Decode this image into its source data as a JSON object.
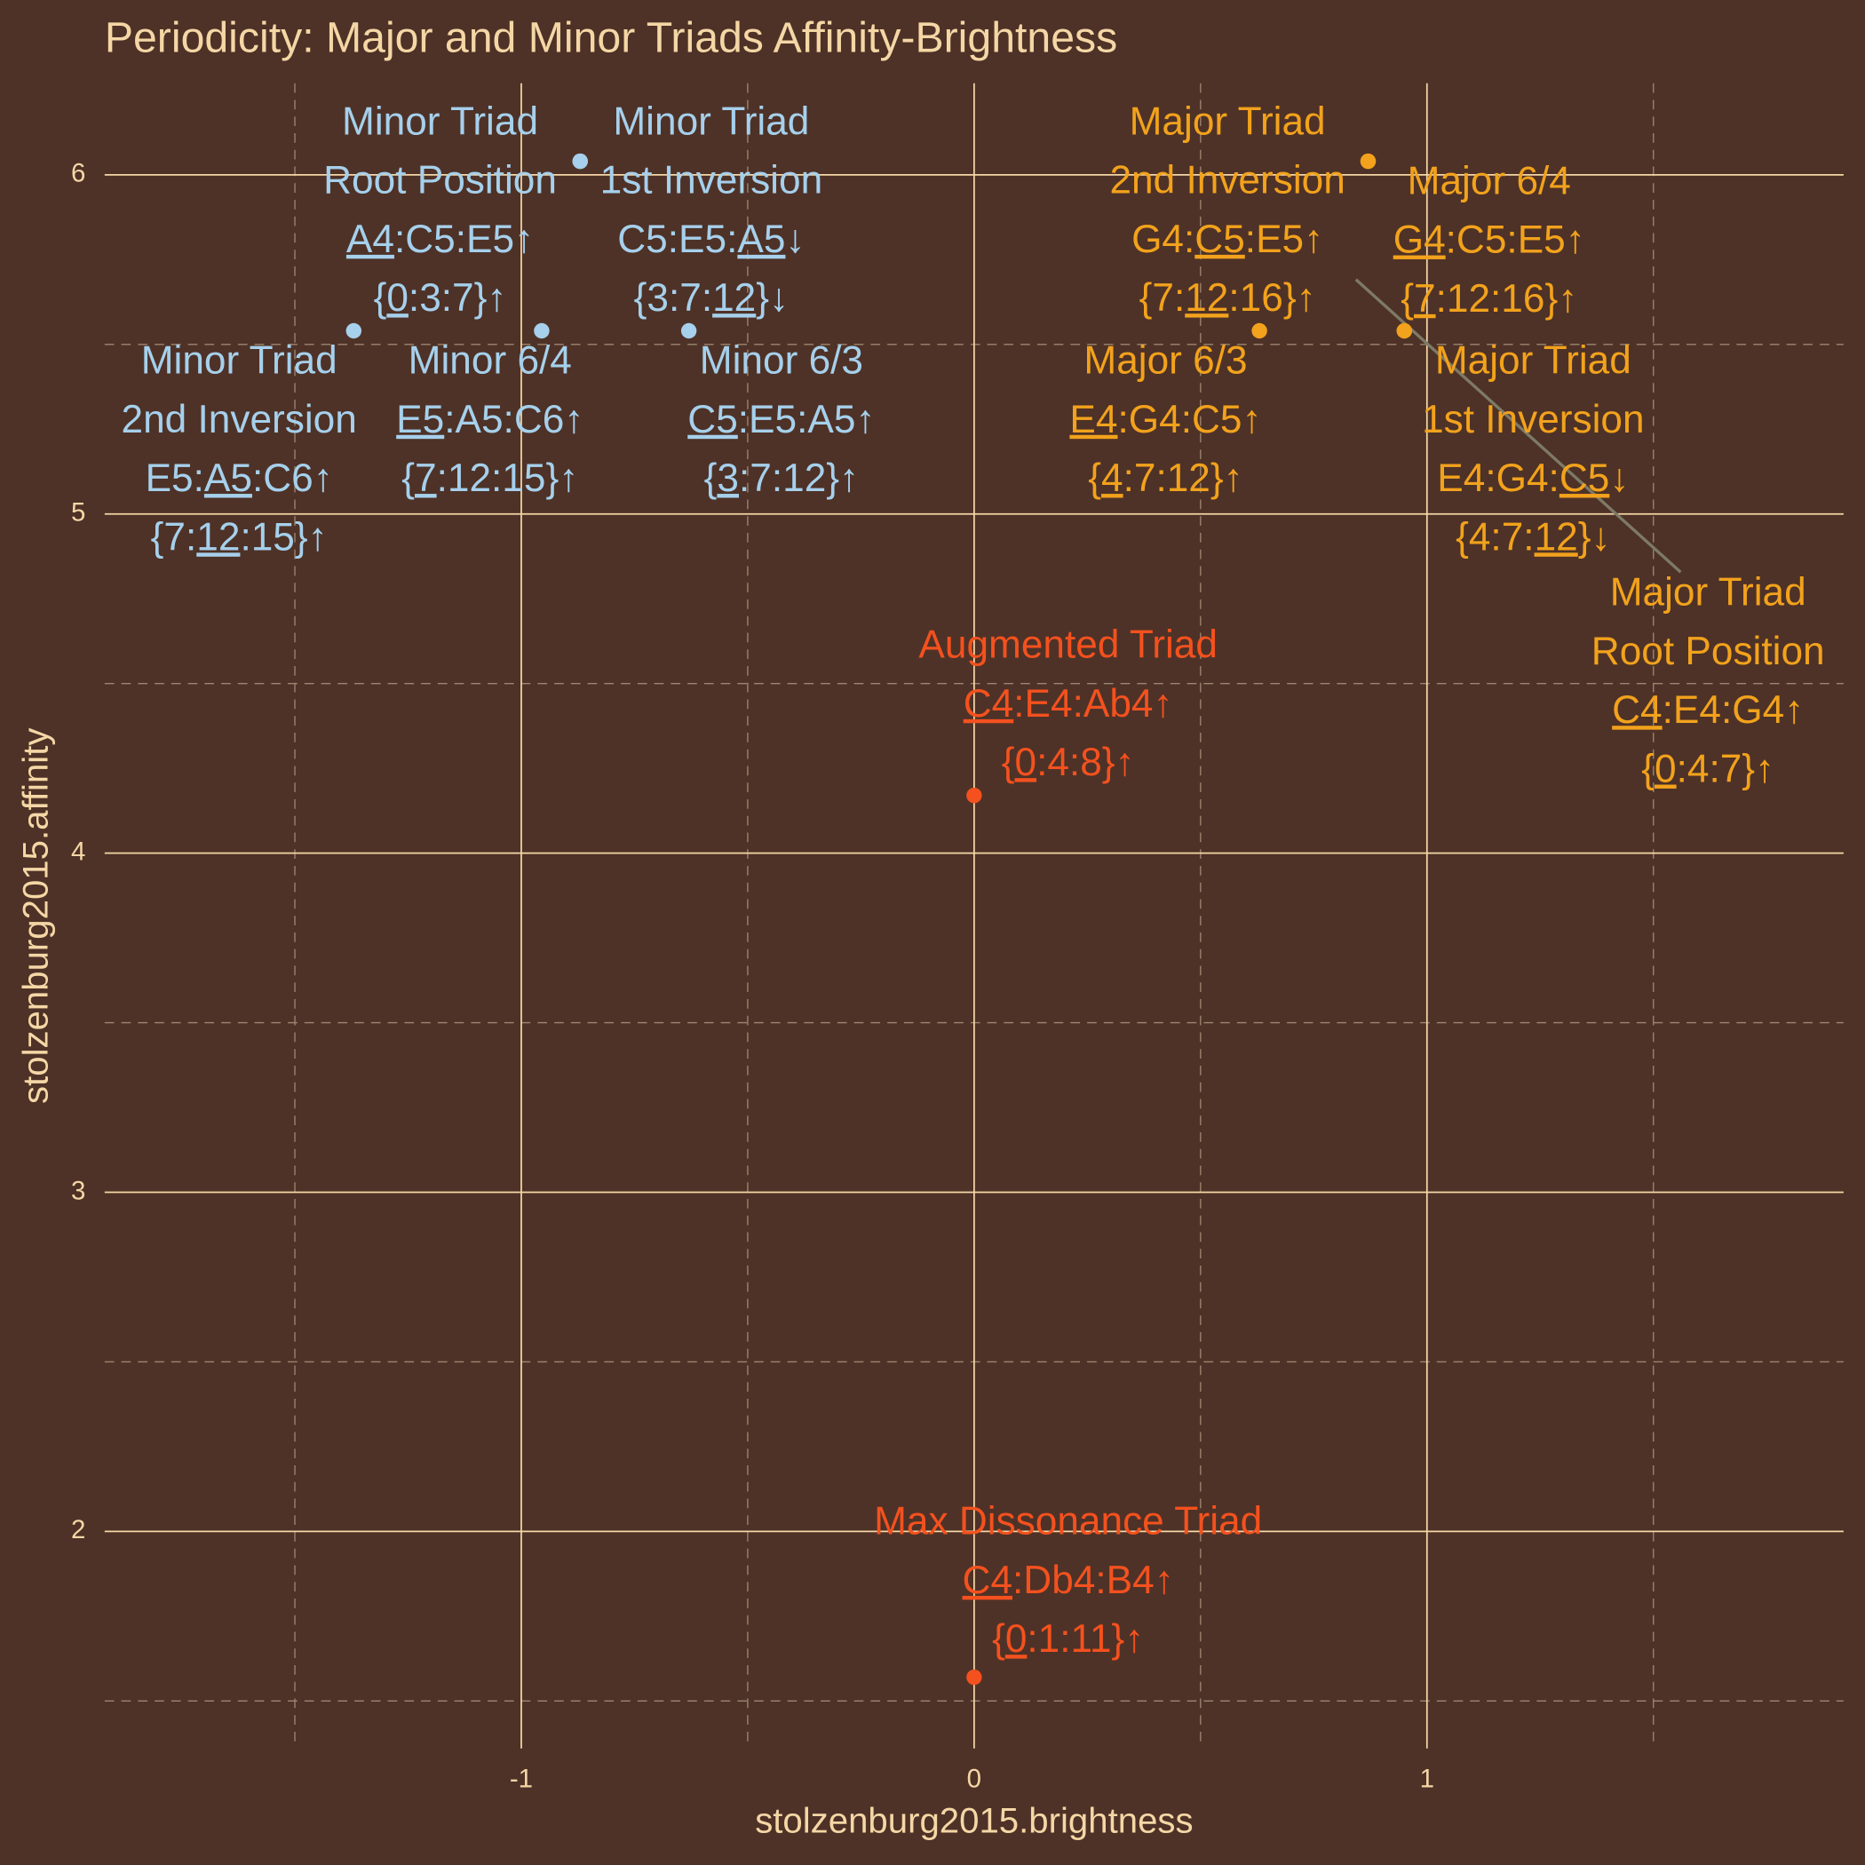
{
  "chart_data": {
    "type": "scatter",
    "title": "Periodicity: Major and Minor Triads Affinity-Brightness",
    "x_label": "stolzenburg2015.brightness",
    "y_label": "stolzenburg2015.affinity",
    "xlim": [
      -1.92,
      1.92
    ],
    "ylim": [
      1.36,
      6.27
    ],
    "xticks": [
      -1,
      0,
      1
    ],
    "yticks": [
      2,
      3,
      4,
      5,
      6
    ],
    "xminor": [
      -1.5,
      -0.5,
      0.5,
      1.5
    ],
    "yminor": [
      1.5,
      2.5,
      3.5,
      4.5,
      5.5
    ],
    "grid": true,
    "points": [
      {
        "x": -0.87,
        "y": 6.04,
        "color": "#a6d0ec",
        "label": [
          [
            "Minor Triad"
          ],
          [
            "Root Position"
          ],
          [
            {
              "text": "A4",
              "underline": true
            },
            ":C5:E5↑"
          ],
          [
            "{",
            {
              "text": "0",
              "underline": true
            },
            ":3:7}↑"
          ]
        ]
      },
      {
        "x": -0.87,
        "y": 6.04,
        "color": "#a6d0ec",
        "label": [
          [
            "Minor Triad"
          ],
          [
            "1st Inversion"
          ],
          [
            "C5:E5:",
            {
              "text": "A5",
              "underline": true
            },
            "↓"
          ],
          [
            "{3:7:",
            {
              "text": "12",
              "underline": true
            },
            "}↓"
          ]
        ]
      },
      {
        "x": -1.37,
        "y": 5.54,
        "color": "#a6d0ec",
        "label": [
          [
            "Minor Triad"
          ],
          [
            "2nd Inversion"
          ],
          [
            "E5:",
            {
              "text": "A5",
              "underline": true
            },
            ":C6↑"
          ],
          [
            "{7:",
            {
              "text": "12",
              "underline": true
            },
            ":15}↑"
          ]
        ]
      },
      {
        "x": -0.955,
        "y": 5.54,
        "color": "#a6d0ec",
        "label": [
          [
            "Minor 6/4"
          ],
          [
            {
              "text": "E5",
              "underline": true
            },
            ":A5:C6↑"
          ],
          [
            "{",
            {
              "text": "7",
              "underline": true
            },
            ":12:15}↑"
          ]
        ]
      },
      {
        "x": -0.63,
        "y": 5.54,
        "color": "#a6d0ec",
        "label": [
          [
            "Minor 6/3"
          ],
          [
            {
              "text": "C5",
              "underline": true
            },
            ":E5:A5↑"
          ],
          [
            "{",
            {
              "text": "3",
              "underline": true
            },
            ":7:12}↑"
          ]
        ]
      },
      {
        "x": 0.87,
        "y": 6.04,
        "color": "#f2a21c",
        "label": [
          [
            "Major Triad"
          ],
          [
            "2nd Inversion"
          ],
          [
            "G4:",
            {
              "text": "C5",
              "underline": true
            },
            ":E5↑"
          ],
          [
            "{7:",
            {
              "text": "12",
              "underline": true
            },
            ":16}↑"
          ]
        ]
      },
      {
        "x": 0.95,
        "y": 5.54,
        "color": "#f2a21c",
        "label": [
          [
            "Major 6/4"
          ],
          [
            {
              "text": "G4",
              "underline": true
            },
            ":C5:E5↑"
          ],
          [
            "{",
            {
              "text": "7",
              "underline": true
            },
            ":12:16}↑"
          ]
        ]
      },
      {
        "x": 0.63,
        "y": 5.54,
        "color": "#f2a21c",
        "label": [
          [
            "Major 6/3"
          ],
          [
            {
              "text": "E4",
              "underline": true
            },
            ":G4:C5↑"
          ],
          [
            "{",
            {
              "text": "4",
              "underline": true
            },
            ":7:12}↑"
          ]
        ]
      },
      {
        "x": 0.95,
        "y": 5.54,
        "color": "#f2a21c",
        "label": [
          [
            "Major Triad"
          ],
          [
            "1st Inversion"
          ],
          [
            "E4:G4:",
            {
              "text": "C5",
              "underline": true
            },
            "↓"
          ],
          [
            "{4:7:",
            {
              "text": "12",
              "underline": true
            },
            "}↓"
          ]
        ]
      },
      {
        "x": 0.87,
        "y": 6.04,
        "color": "#f2a21c",
        "label": [
          [
            "Major Triad"
          ],
          [
            "Root Position"
          ],
          [
            {
              "text": "C4",
              "underline": true
            },
            ":E4:G4↑"
          ],
          [
            "{",
            {
              "text": "0",
              "underline": true
            },
            ":4:7}↑"
          ]
        ]
      },
      {
        "x": 0,
        "y": 4.17,
        "color": "#f4511e",
        "label": [
          [
            "Augmented Triad"
          ],
          [
            {
              "text": "C4",
              "underline": true
            },
            ":E4:Ab4↑"
          ],
          [
            "{",
            {
              "text": "0",
              "underline": true
            },
            ":4:8}↑"
          ]
        ]
      },
      {
        "x": 0,
        "y": 1.57,
        "color": "#f4511e",
        "label": [
          [
            "Max Dissonance Triad"
          ],
          [
            {
              "text": "C4",
              "underline": true
            },
            ":Db4:B4↑"
          ],
          [
            "{",
            {
              "text": "0",
              "underline": true
            },
            ":1:11}↑"
          ]
        ]
      }
    ]
  }
}
